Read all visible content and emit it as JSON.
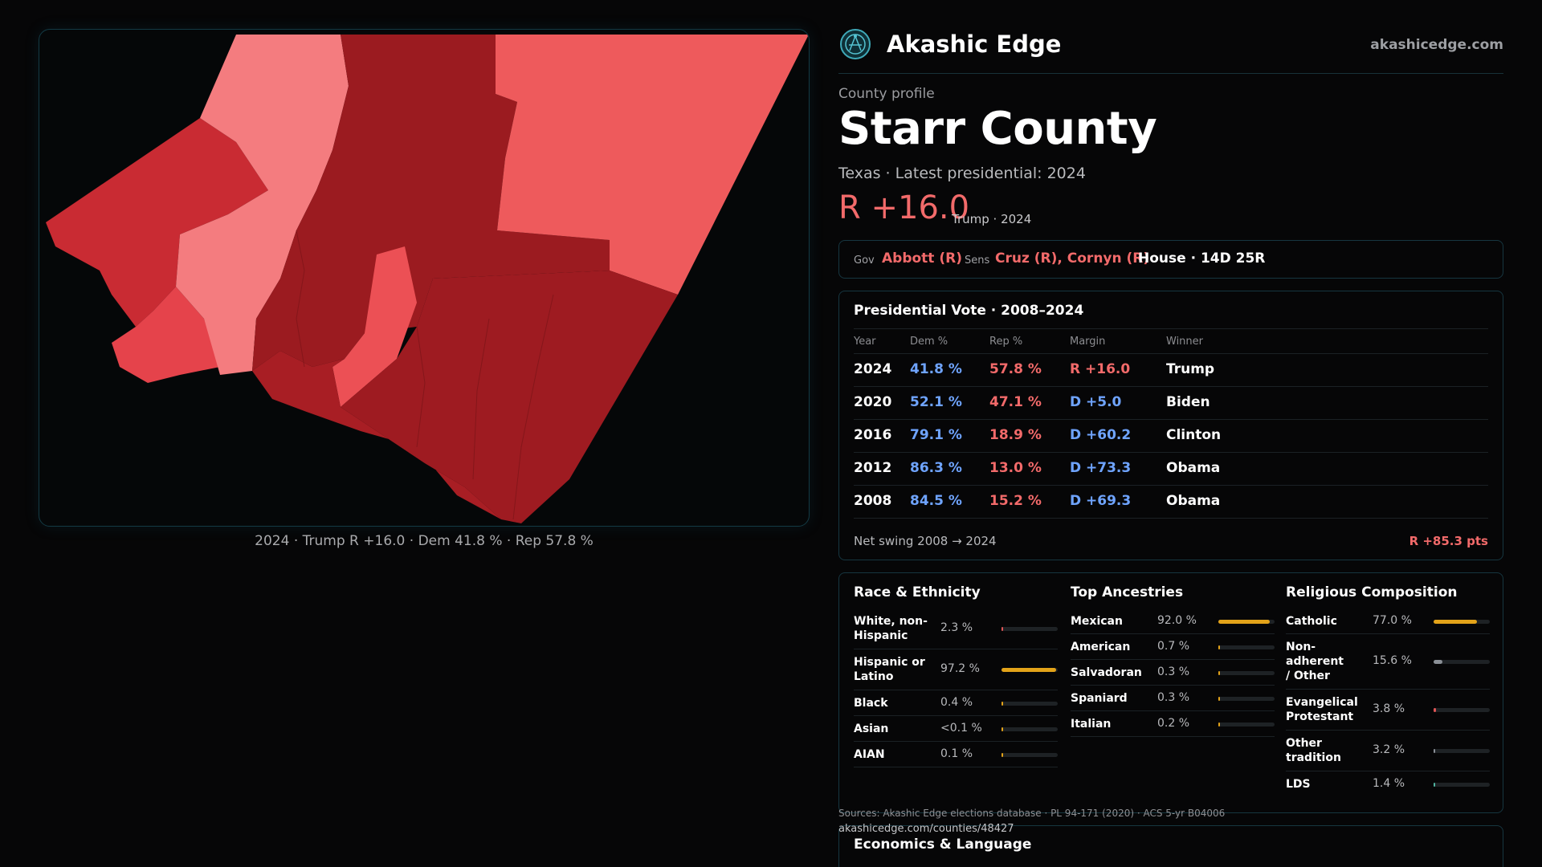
{
  "map": {
    "caption": "2024 · Trump R +16.0 · Dem 41.8 % · Rep 57.8 %"
  },
  "brand": {
    "name": "Akashic Edge",
    "url": "akashicedge.com",
    "logo_icon": "network-globe-icon"
  },
  "profile": {
    "eyebrow": "County profile",
    "title": "Starr County",
    "subtitle": "Texas · Latest presidential: 2024",
    "margin": "R +16.0",
    "margin_sub": "Trump · 2024"
  },
  "officials": {
    "gov_label": "Gov",
    "gov": "Abbott (R)",
    "sens_label": "Sens",
    "sens": "Cruz (R), Cornyn (R)",
    "house": "House · 14D 25R"
  },
  "vote": {
    "title": "Presidential Vote · 2008–2024",
    "headers": {
      "year": "Year",
      "dem": "Dem %",
      "rep": "Rep %",
      "margin": "Margin",
      "winner": "Winner"
    },
    "rows": [
      {
        "year": "2024",
        "dem": "41.8 %",
        "rep": "57.8 %",
        "margin": "R +16.0",
        "winner": "Trump"
      },
      {
        "year": "2020",
        "dem": "52.1 %",
        "rep": "47.1 %",
        "margin": "D +5.0",
        "winner": "Biden"
      },
      {
        "year": "2016",
        "dem": "79.1 %",
        "rep": "18.9 %",
        "margin": "D +60.2",
        "winner": "Clinton"
      },
      {
        "year": "2012",
        "dem": "86.3 %",
        "rep": "13.0 %",
        "margin": "D +73.3",
        "winner": "Obama"
      },
      {
        "year": "2008",
        "dem": "84.5 %",
        "rep": "15.2 %",
        "margin": "D +69.3",
        "winner": "Obama"
      }
    ],
    "swing_label": "Net swing 2008 → 2024",
    "swing_value": "R +85.3 pts"
  },
  "race": {
    "title": "Race & Ethnicity",
    "rows": [
      {
        "label": "White, non-Hispanic",
        "pct": "2.3 %",
        "fraction": 0.023
      },
      {
        "label": "Hispanic or Latino",
        "pct": "97.2 %",
        "fraction": 0.972
      },
      {
        "label": "Black",
        "pct": "0.4 %",
        "fraction": 0.004
      },
      {
        "label": "Asian",
        "pct": "<0.1 %",
        "fraction": 0.0
      },
      {
        "label": "AIAN",
        "pct": "0.1 %",
        "fraction": 0.001
      }
    ]
  },
  "ancestry": {
    "title": "Top Ancestries",
    "rows": [
      {
        "label": "Mexican",
        "pct": "92.0 %",
        "fraction": 0.92
      },
      {
        "label": "American",
        "pct": "0.7 %",
        "fraction": 0.007
      },
      {
        "label": "Salvadoran",
        "pct": "0.3 %",
        "fraction": 0.003
      },
      {
        "label": "Spaniard",
        "pct": "0.3 %",
        "fraction": 0.003
      },
      {
        "label": "Italian",
        "pct": "0.2 %",
        "fraction": 0.002
      }
    ]
  },
  "religion": {
    "title": "Religious Composition",
    "rows": [
      {
        "label": "Catholic",
        "pct": "77.0 %",
        "fraction": 0.77
      },
      {
        "label": "Non-adherent / Other",
        "pct": "15.6 %",
        "fraction": 0.156
      },
      {
        "label": "Evangelical Protestant",
        "pct": "3.8 %",
        "fraction": 0.038
      },
      {
        "label": "Other tradition",
        "pct": "3.2 %",
        "fraction": 0.032
      },
      {
        "label": "LDS",
        "pct": "1.4 %",
        "fraction": 0.014
      }
    ]
  },
  "sources": {
    "text": "Sources: Akashic Edge elections database · PL 94-171 (2020) · ACS 5-yr B04006",
    "url": "akashicedge.com/counties/48427"
  },
  "economics": {
    "title": "Economics & Language"
  },
  "colors": {
    "rep_accent": "#f26a6a",
    "dem_accent": "#6fa4ff",
    "bar_gold": "#e3a319",
    "bar_grey": "#8a8f96",
    "bar_red": "#e05555",
    "bar_teal": "#4fb3a0",
    "panel_border": "#163640"
  }
}
